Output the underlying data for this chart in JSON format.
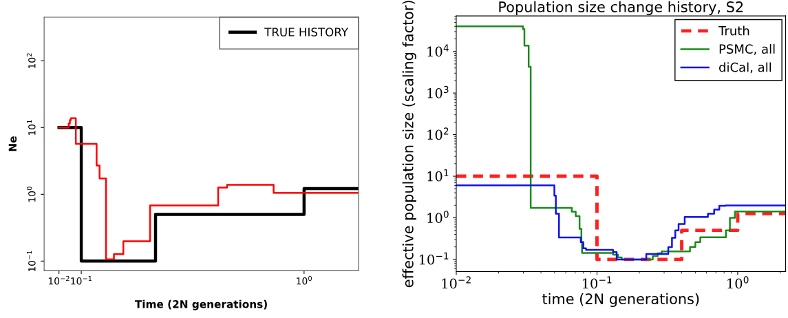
{
  "chart_data": [
    {
      "type": "step",
      "xlabel": "Time (2N generations)",
      "ylabel": "Ne",
      "log": "y",
      "legend": "top right",
      "grid": false,
      "xlim": [
        -0.05,
        1.22
      ],
      "xticks": [
        {
          "value": 0.01,
          "label": "10$^{−2}$"
        },
        {
          "value": 0.1,
          "label": "10$^{−1}$"
        },
        {
          "value": 1,
          "label": "10$^{0}$"
        }
      ],
      "ylim": [
        0.072,
        450
      ],
      "yticks": [
        {
          "value": 0.1,
          "label": "10$^{−1}$"
        },
        {
          "value": 1,
          "label": "10$^{0}$"
        },
        {
          "value": 10,
          "label": "10$^{1}$"
        },
        {
          "value": 100,
          "label": "10$^{2}$"
        }
      ],
      "series": [
        {
          "name": "TRUE HISTORY",
          "color": "#000000",
          "line_style": "solid",
          "x": [
            0.01,
            0.1,
            0.4,
            1.0,
            1.22
          ],
          "values": [
            10,
            0.1,
            0.5,
            1.22,
            1.22
          ]
        },
        {
          "color": "#ff0000",
          "line_style": "solid",
          "x": [
            0.01,
            0.049,
            0.054,
            0.058,
            0.078,
            0.162,
            0.174,
            0.2,
            0.232,
            0.27,
            0.378,
            0.653,
            0.689,
            0.877,
            1.22
          ],
          "values": [
            10,
            11.5,
            12.9,
            13.8,
            5.7,
            2.7,
            1.73,
            0.106,
            0.127,
            0.198,
            0.68,
            1.26,
            1.39,
            1.05,
            1.05
          ]
        }
      ]
    },
    {
      "type": "step",
      "title": "Population size change history, S2",
      "xlabel": "time (2N generations)",
      "ylabel": "effective population size (scaling factor)",
      "log": "xy",
      "legend": "top right",
      "grid": false,
      "xlim": [
        0.01,
        2.19
      ],
      "xticks": [
        {
          "value": 0.01,
          "label": "10$^{−2}$"
        },
        {
          "value": 0.1,
          "label": "10$^{−1}$"
        },
        {
          "value": 1,
          "label": "10$^{0}$"
        }
      ],
      "ylim": [
        0.051,
        71500
      ],
      "yticks": [
        {
          "value": 0.1,
          "label": "10$^{−1}$"
        },
        {
          "value": 1,
          "label": "10$^{0}$"
        },
        {
          "value": 10,
          "label": "10$^{1}$"
        },
        {
          "value": 100,
          "label": "10$^{2}$"
        },
        {
          "value": 1000,
          "label": "10$^{3}$"
        },
        {
          "value": 10000,
          "label": "10$^{4}$"
        }
      ],
      "series": [
        {
          "name": "Truth",
          "color": "#ff2020",
          "line_style": "dashed",
          "x": [
            0.01,
            0.1,
            0.4,
            1.0,
            2.19
          ],
          "values": [
            10,
            0.1,
            0.5,
            1.26,
            1.26
          ]
        },
        {
          "name": "PSMC, all",
          "color": "#1a8a1a",
          "line_style": "solid",
          "x": [
            0.01,
            0.0298,
            0.0305,
            0.0327,
            0.0338,
            0.0662,
            0.0706,
            0.0752,
            0.0775,
            0.0783,
            0.13,
            0.141,
            0.15,
            0.249,
            0.27,
            0.288,
            0.458,
            0.5,
            0.542,
            0.824,
            0.88,
            0.955,
            2.19
          ],
          "values": [
            40000,
            34600,
            13800,
            4300,
            1.74,
            1.4,
            1.1,
            0.54,
            0.26,
            0.143,
            0.13,
            0.112,
            0.1,
            0.12,
            0.14,
            0.155,
            0.2,
            0.26,
            0.34,
            0.5,
            1.0,
            1.42,
            1.42
          ]
        },
        {
          "name": "diCal, all",
          "color": "#1010ee",
          "line_style": "solid",
          "x": [
            0.01,
            0.0498,
            0.051,
            0.0537,
            0.0767,
            0.08,
            0.0836,
            0.13,
            0.138,
            0.224,
            0.321,
            0.341,
            0.36,
            0.38,
            0.42,
            0.614,
            0.68,
            0.74,
            0.82,
            2.19
          ],
          "values": [
            6.05,
            3.4,
            1.26,
            0.336,
            0.26,
            0.184,
            0.17,
            0.15,
            0.1,
            0.135,
            0.198,
            0.33,
            0.5,
            0.71,
            1.05,
            1.26,
            1.57,
            1.94,
            1.99,
            1.99
          ]
        }
      ]
    }
  ]
}
